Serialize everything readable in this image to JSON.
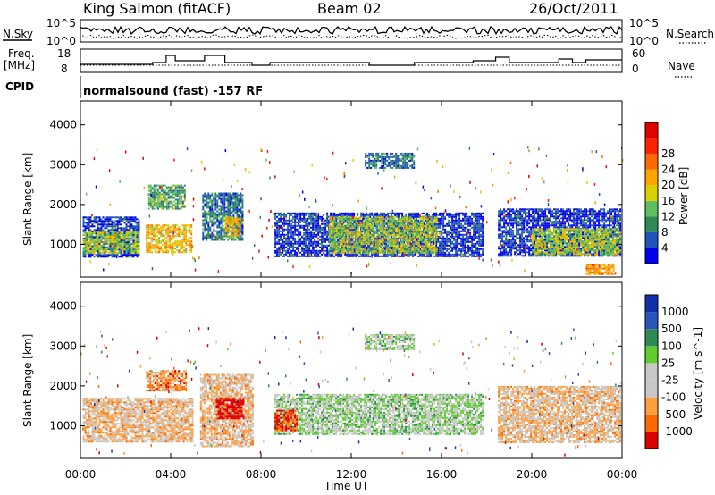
{
  "header": {
    "station": "King Salmon (fitACF)",
    "beam": "Beam 02",
    "date": "26/Oct/2011"
  },
  "noise_panel": {
    "left_label": "N.Sky",
    "right_label": "N.Search",
    "tick_top": "10^5",
    "tick_bottom": "10^0",
    "tick_top_right": "10^5",
    "tick_bottom_right": "10^0"
  },
  "freq_panel": {
    "left_label_1": "Freq.",
    "left_label_2": "[MHz]",
    "right_label": "Nave",
    "freq_ticks": [
      "18",
      "8"
    ],
    "nave_ticks": [
      "60",
      "0"
    ]
  },
  "cpid_panel": {
    "label": "CPID",
    "text": "normalsound (fast) -157 RF"
  },
  "colors": {
    "power_scale": [
      "#0000ee",
      "#2255bb",
      "#2e8b57",
      "#5fbf5f",
      "#d8d000",
      "#ffa500",
      "#ff6a00",
      "#ff2200",
      "#e00000"
    ],
    "velocity_scale": [
      "#dd0000",
      "#ff6a00",
      "#ffa040",
      "#c8c8c8",
      "#c8c8c8",
      "#60cc30",
      "#2e8b57",
      "#2a55bb",
      "#1030aa"
    ]
  },
  "chart_data": [
    {
      "type": "heatmap",
      "name": "power",
      "ylabel": "Slant Range [km]",
      "xlabel": "Time UT",
      "yticks": [
        "1000",
        "2000",
        "3000",
        "4000"
      ],
      "xticks": [
        "00:00",
        "04:00",
        "08:00",
        "12:00",
        "16:00",
        "20:00",
        "00:00"
      ],
      "colorbar_label": "Power [dB]",
      "colorbar_ticks": [
        "4",
        "8",
        "12",
        "16",
        "20",
        "24",
        "28"
      ],
      "ylim": [
        180,
        4600
      ],
      "xlim": [
        0,
        24
      ],
      "regions": [
        {
          "t0": 0.1,
          "t1": 2.6,
          "r0": 700,
          "r1": 1700,
          "level": 1
        },
        {
          "t0": 0.1,
          "t1": 2.6,
          "r0": 800,
          "r1": 1350,
          "level": 4
        },
        {
          "t0": 2.9,
          "t1": 4.9,
          "r0": 800,
          "r1": 1500,
          "level": 5
        },
        {
          "t0": 3.0,
          "t1": 4.6,
          "r0": 1900,
          "r1": 2500,
          "level": 3
        },
        {
          "t0": 5.4,
          "t1": 7.2,
          "r0": 1100,
          "r1": 2300,
          "level": 2
        },
        {
          "t0": 6.4,
          "t1": 7.1,
          "r0": 1200,
          "r1": 1700,
          "level": 5
        },
        {
          "t0": 8.6,
          "t1": 17.8,
          "r0": 700,
          "r1": 1800,
          "level": 1
        },
        {
          "t0": 11.0,
          "t1": 15.8,
          "r0": 800,
          "r1": 1700,
          "level": 4
        },
        {
          "t0": 12.6,
          "t1": 14.8,
          "r0": 2900,
          "r1": 3300,
          "level": 2
        },
        {
          "t0": 18.5,
          "t1": 23.9,
          "r0": 700,
          "r1": 1900,
          "level": 1
        },
        {
          "t0": 20.0,
          "t1": 23.9,
          "r0": 750,
          "r1": 1400,
          "level": 4
        },
        {
          "t0": 22.4,
          "t1": 23.6,
          "r0": 250,
          "r1": 500,
          "level": 6
        }
      ]
    },
    {
      "type": "heatmap",
      "name": "velocity",
      "ylabel": "Slant Range [km]",
      "xlabel": "Time UT",
      "yticks": [
        "1000",
        "2000",
        "3000",
        "4000"
      ],
      "xticks": [
        "00:00",
        "04:00",
        "08:00",
        "12:00",
        "16:00",
        "20:00",
        "00:00"
      ],
      "colorbar_label": "Velocity [m s^-1]",
      "colorbar_ticks": [
        "1000",
        "500",
        "100",
        "25",
        "-25",
        "-100",
        "-500",
        "-1000"
      ],
      "ylim": [
        180,
        4600
      ],
      "xlim": [
        0,
        24
      ],
      "regions": [
        {
          "t0": 0.1,
          "t1": 5.0,
          "r0": 600,
          "r1": 1700,
          "level": 3
        },
        {
          "t0": 5.3,
          "t1": 7.6,
          "r0": 500,
          "r1": 2300,
          "level": 3
        },
        {
          "t0": 6.0,
          "t1": 7.2,
          "r0": 1200,
          "r1": 1700,
          "level": 0
        },
        {
          "t0": 2.9,
          "t1": 4.7,
          "r0": 1900,
          "r1": 2400,
          "level": 2
        },
        {
          "t0": 8.6,
          "t1": 17.8,
          "r0": 800,
          "r1": 1800,
          "level": 5
        },
        {
          "t0": 8.6,
          "t1": 9.6,
          "r0": 900,
          "r1": 1400,
          "level": 1
        },
        {
          "t0": 12.6,
          "t1": 14.8,
          "r0": 2900,
          "r1": 3300,
          "level": 5
        },
        {
          "t0": 18.5,
          "t1": 23.9,
          "r0": 600,
          "r1": 2000,
          "level": 3
        }
      ]
    }
  ]
}
